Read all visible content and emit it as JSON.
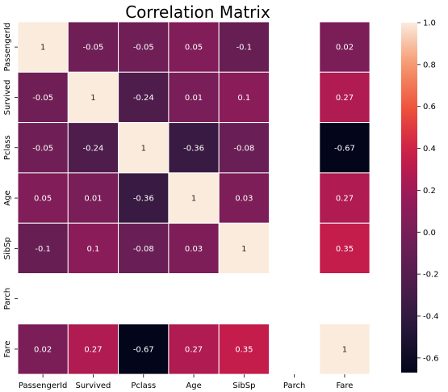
{
  "chart_data": {
    "type": "heatmap",
    "title": "Correlation Matrix",
    "xlabel": "",
    "ylabel": "",
    "rows": [
      "PassengerId",
      "Survived",
      "Pclass",
      "Age",
      "SibSp",
      "Parch",
      "Fare"
    ],
    "columns": [
      "PassengerId",
      "Survived",
      "Pclass",
      "Age",
      "SibSp",
      "Parch",
      "Fare"
    ],
    "values": [
      [
        1,
        -0.05,
        -0.05,
        0.05,
        -0.1,
        null,
        0.02
      ],
      [
        -0.05,
        1,
        -0.24,
        0.01,
        0.1,
        null,
        0.27
      ],
      [
        -0.05,
        -0.24,
        1,
        -0.36,
        -0.08,
        null,
        -0.67
      ],
      [
        0.05,
        0.01,
        -0.36,
        1,
        0.03,
        null,
        0.27
      ],
      [
        -0.1,
        0.1,
        -0.08,
        0.03,
        1,
        null,
        0.35
      ],
      [
        null,
        null,
        null,
        null,
        null,
        null,
        null
      ],
      [
        0.02,
        0.27,
        -0.67,
        0.27,
        0.35,
        null,
        1
      ]
    ],
    "colorbar": {
      "vmin": -0.67,
      "vmax": 1.0,
      "ticks": [
        -0.6,
        -0.4,
        -0.2,
        0.0,
        0.2,
        0.4,
        0.6,
        0.8,
        1.0
      ],
      "tick_labels": [
        "-0.6",
        "-0.4",
        "-0.2",
        "0.0",
        "0.2",
        "0.4",
        "0.6",
        "0.8",
        "1.0"
      ],
      "colormap": "rocket"
    },
    "grid": true
  }
}
